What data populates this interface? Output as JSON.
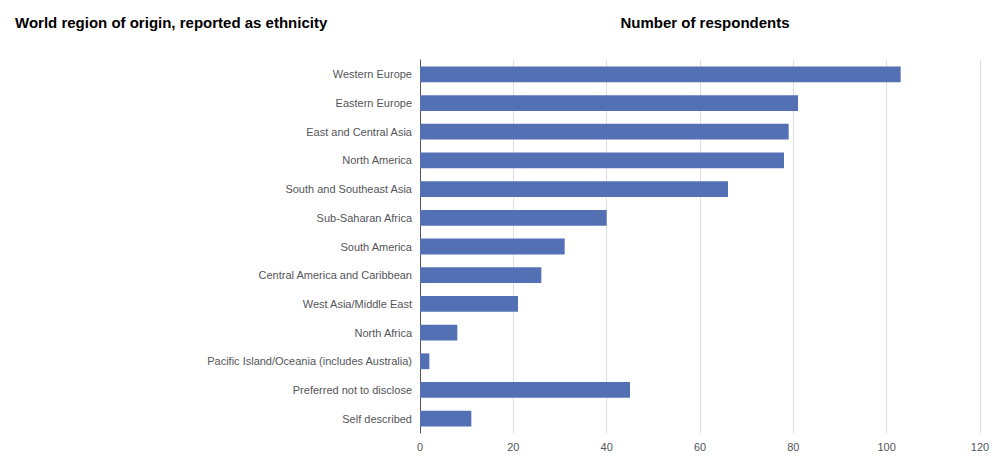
{
  "chart_data": {
    "type": "bar",
    "orientation": "horizontal",
    "title": "World region of origin, reported as ethnicity",
    "xlabel": "Number of respondents",
    "categories": [
      "Western Europe",
      "Eastern Europe",
      "East and Central Asia",
      "North America",
      "South and Southeast Asia",
      "Sub-Saharan Africa",
      "South America",
      "Central America and Caribbean",
      "West Asia/Middle East",
      "North Africa",
      "Pacific Island/Oceania (includes Australia)",
      "Preferred not to disclose",
      "Self described"
    ],
    "values": [
      103,
      81,
      79,
      78,
      66,
      40,
      31,
      26,
      21,
      8,
      2,
      45,
      11
    ],
    "color": "#5470b5",
    "xlim": [
      0,
      120
    ],
    "xticks": [
      0,
      20,
      40,
      60,
      80,
      100,
      120
    ],
    "grid": true
  }
}
